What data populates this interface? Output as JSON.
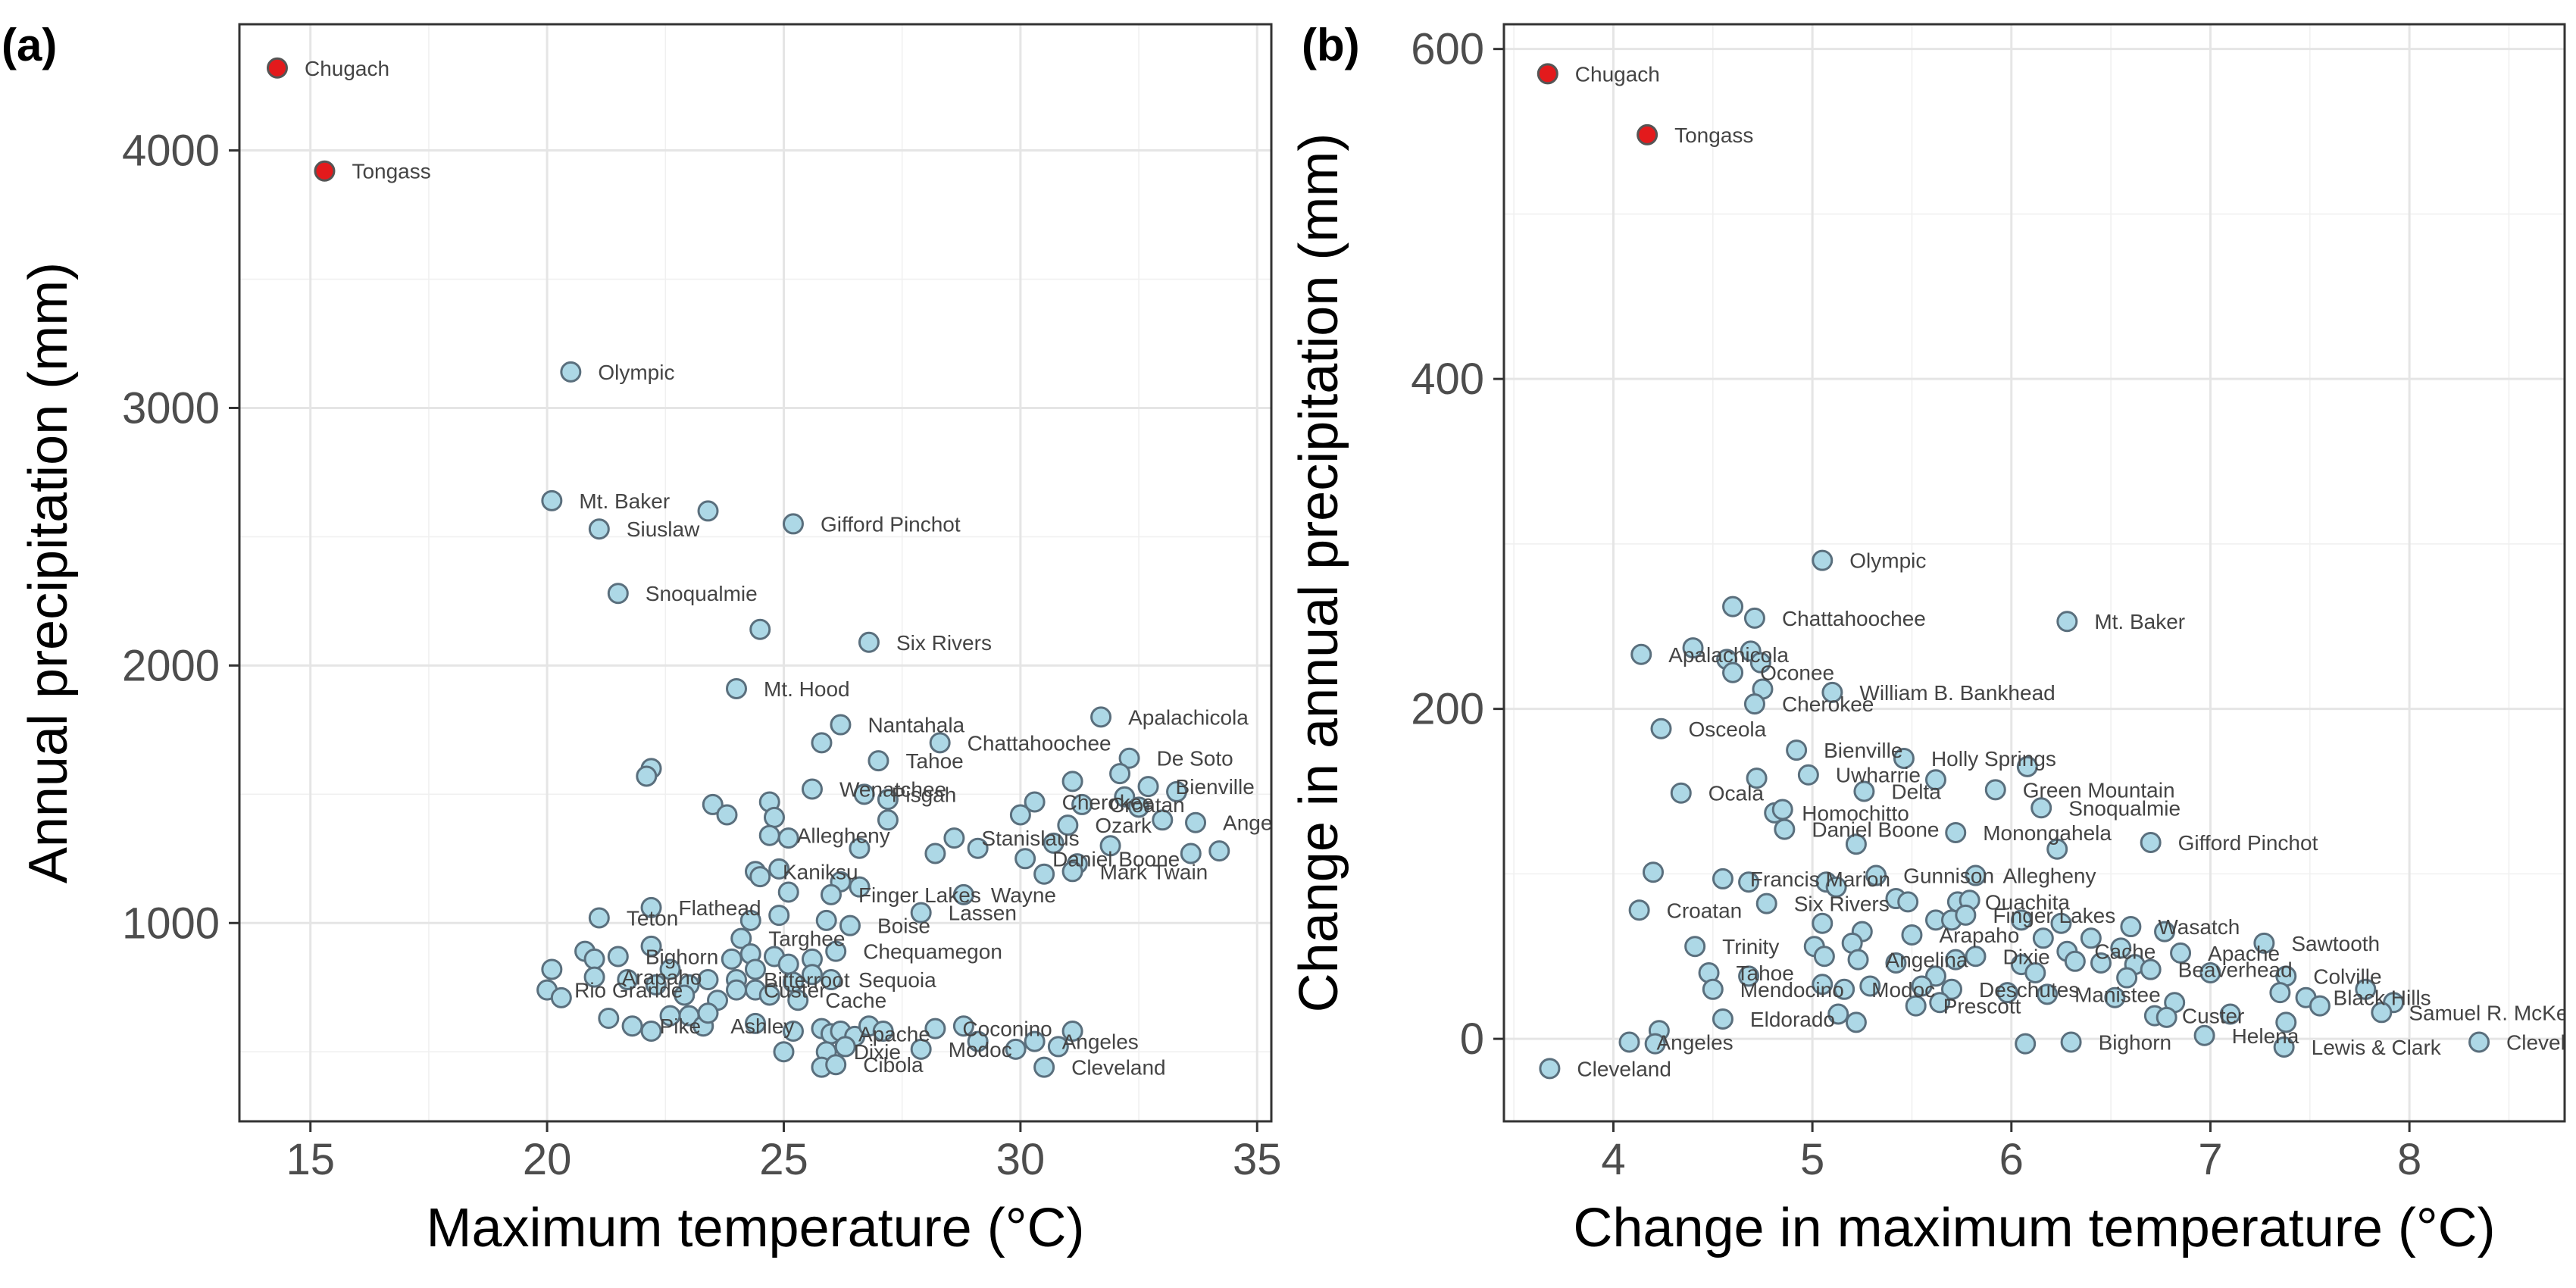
{
  "chart_data": [
    {
      "type": "scatter",
      "panel_label": "(a)",
      "xlabel": "Maximum temperature (°C)",
      "ylabel": "Annual precipitation (mm)",
      "xlim": [
        13.5,
        35.3
      ],
      "ylim": [
        230,
        4490
      ],
      "xticks": [
        15,
        20,
        25,
        30,
        35
      ],
      "yticks": [
        1000,
        2000,
        3000,
        4000
      ],
      "grid": true,
      "legend": "none",
      "colors": {
        "default_fill": "#add8e6",
        "default_stroke": "#5a6f7d",
        "highlight_fill": "#e31a1c",
        "highlight_stroke": "#555555"
      },
      "points": [
        {
          "x": 14.3,
          "y": 4320,
          "label": "Chugach",
          "highlight": true
        },
        {
          "x": 15.3,
          "y": 3920,
          "label": "Tongass",
          "highlight": true
        },
        {
          "x": 20.5,
          "y": 3140,
          "label": "Olympic"
        },
        {
          "x": 20.1,
          "y": 2640,
          "label": "Mt. Baker"
        },
        {
          "x": 21.1,
          "y": 2530,
          "label": "Siuslaw"
        },
        {
          "x": 23.4,
          "y": 2600
        },
        {
          "x": 25.2,
          "y": 2550,
          "label": "Gifford Pinchot"
        },
        {
          "x": 21.5,
          "y": 2280,
          "label": "Snoqualmie"
        },
        {
          "x": 24.5,
          "y": 2140
        },
        {
          "x": 26.8,
          "y": 2090,
          "label": "Six Rivers"
        },
        {
          "x": 24.0,
          "y": 1910,
          "label": "Mt. Hood"
        },
        {
          "x": 26.2,
          "y": 1770,
          "label": "Nantahala"
        },
        {
          "x": 25.8,
          "y": 1700
        },
        {
          "x": 28.3,
          "y": 1700,
          "label": "Chattahoochee"
        },
        {
          "x": 31.7,
          "y": 1800,
          "label": "Apalachicola"
        },
        {
          "x": 27.0,
          "y": 1630,
          "label": "Tahoe"
        },
        {
          "x": 32.3,
          "y": 1640,
          "label": "De Soto"
        },
        {
          "x": 22.2,
          "y": 1600
        },
        {
          "x": 22.1,
          "y": 1570
        },
        {
          "x": 32.1,
          "y": 1580
        },
        {
          "x": 25.6,
          "y": 1520,
          "label": "Wenatchee"
        },
        {
          "x": 31.1,
          "y": 1550
        },
        {
          "x": 32.7,
          "y": 1530,
          "label": "Bienville"
        },
        {
          "x": 26.7,
          "y": 1500,
          "label": "Pisgah"
        },
        {
          "x": 27.2,
          "y": 1480
        },
        {
          "x": 32.2,
          "y": 1490
        },
        {
          "x": 33.3,
          "y": 1510
        },
        {
          "x": 23.5,
          "y": 1460
        },
        {
          "x": 24.7,
          "y": 1470
        },
        {
          "x": 30.3,
          "y": 1470,
          "label": "Cherokee"
        },
        {
          "x": 31.3,
          "y": 1460,
          "label": "Croatan"
        },
        {
          "x": 32.5,
          "y": 1450
        },
        {
          "x": 23.8,
          "y": 1420
        },
        {
          "x": 24.8,
          "y": 1410
        },
        {
          "x": 30.0,
          "y": 1420
        },
        {
          "x": 33.0,
          "y": 1400
        },
        {
          "x": 27.2,
          "y": 1400
        },
        {
          "x": 31.0,
          "y": 1380,
          "label": "Ozark"
        },
        {
          "x": 33.7,
          "y": 1390,
          "label": "Angeles"
        },
        {
          "x": 24.7,
          "y": 1340,
          "label": "Allegheny"
        },
        {
          "x": 25.1,
          "y": 1330
        },
        {
          "x": 28.6,
          "y": 1330,
          "label": "Stanislaus"
        },
        {
          "x": 29.1,
          "y": 1290
        },
        {
          "x": 30.7,
          "y": 1310
        },
        {
          "x": 31.9,
          "y": 1300
        },
        {
          "x": 26.6,
          "y": 1290
        },
        {
          "x": 28.2,
          "y": 1270
        },
        {
          "x": 30.1,
          "y": 1250,
          "label": "Daniel Boone"
        },
        {
          "x": 31.2,
          "y": 1230
        },
        {
          "x": 33.6,
          "y": 1270
        },
        {
          "x": 34.2,
          "y": 1280
        },
        {
          "x": 31.1,
          "y": 1200,
          "label": "Mark Twain"
        },
        {
          "x": 24.4,
          "y": 1200,
          "label": "Kaniksu"
        },
        {
          "x": 24.9,
          "y": 1210
        },
        {
          "x": 24.5,
          "y": 1180
        },
        {
          "x": 30.5,
          "y": 1190
        },
        {
          "x": 26.2,
          "y": 1160
        },
        {
          "x": 26.6,
          "y": 1140
        },
        {
          "x": 25.1,
          "y": 1120
        },
        {
          "x": 28.8,
          "y": 1110,
          "label": "Wayne"
        },
        {
          "x": 26.0,
          "y": 1110,
          "label": "Finger Lakes"
        },
        {
          "x": 22.2,
          "y": 1060,
          "label": "Flathead"
        },
        {
          "x": 21.1,
          "y": 1020,
          "label": "Teton"
        },
        {
          "x": 24.9,
          "y": 1030
        },
        {
          "x": 24.3,
          "y": 1010
        },
        {
          "x": 27.9,
          "y": 1040,
          "label": "Lassen"
        },
        {
          "x": 25.9,
          "y": 1010
        },
        {
          "x": 26.4,
          "y": 990,
          "label": "Boise"
        },
        {
          "x": 24.1,
          "y": 940,
          "label": "Targhee"
        },
        {
          "x": 20.8,
          "y": 890
        },
        {
          "x": 21.5,
          "y": 870,
          "label": "Bighorn"
        },
        {
          "x": 21.0,
          "y": 860
        },
        {
          "x": 22.2,
          "y": 910
        },
        {
          "x": 24.3,
          "y": 880
        },
        {
          "x": 24.8,
          "y": 870
        },
        {
          "x": 25.1,
          "y": 840
        },
        {
          "x": 25.6,
          "y": 860
        },
        {
          "x": 26.1,
          "y": 890,
          "label": "Chequamegon"
        },
        {
          "x": 23.9,
          "y": 860
        },
        {
          "x": 20.1,
          "y": 820
        },
        {
          "x": 21.0,
          "y": 790,
          "label": "Arapaho"
        },
        {
          "x": 22.6,
          "y": 820
        },
        {
          "x": 24.4,
          "y": 820
        },
        {
          "x": 25.6,
          "y": 800
        },
        {
          "x": 20.0,
          "y": 740,
          "label": "Rio Grande"
        },
        {
          "x": 20.3,
          "y": 710
        },
        {
          "x": 21.7,
          "y": 780
        },
        {
          "x": 22.3,
          "y": 760
        },
        {
          "x": 23.0,
          "y": 760
        },
        {
          "x": 23.4,
          "y": 780
        },
        {
          "x": 24.0,
          "y": 780,
          "label": "Bitterroot"
        },
        {
          "x": 25.2,
          "y": 770
        },
        {
          "x": 26.0,
          "y": 780,
          "label": "Sequoia"
        },
        {
          "x": 22.9,
          "y": 720
        },
        {
          "x": 23.6,
          "y": 700
        },
        {
          "x": 24.0,
          "y": 740,
          "label": "Custer"
        },
        {
          "x": 24.4,
          "y": 740
        },
        {
          "x": 24.7,
          "y": 720
        },
        {
          "x": 25.3,
          "y": 700,
          "label": "Cache"
        },
        {
          "x": 21.3,
          "y": 630
        },
        {
          "x": 21.8,
          "y": 600,
          "label": "Pike"
        },
        {
          "x": 22.2,
          "y": 580
        },
        {
          "x": 22.6,
          "y": 640
        },
        {
          "x": 23.0,
          "y": 640
        },
        {
          "x": 23.3,
          "y": 600,
          "label": "Ashley"
        },
        {
          "x": 23.4,
          "y": 650
        },
        {
          "x": 24.4,
          "y": 610
        },
        {
          "x": 25.2,
          "y": 580
        },
        {
          "x": 25.8,
          "y": 590
        },
        {
          "x": 26.0,
          "y": 570,
          "label": "Apache"
        },
        {
          "x": 26.2,
          "y": 580
        },
        {
          "x": 26.5,
          "y": 560
        },
        {
          "x": 26.8,
          "y": 600
        },
        {
          "x": 27.1,
          "y": 580
        },
        {
          "x": 28.2,
          "y": 590,
          "label": "Coconino"
        },
        {
          "x": 28.8,
          "y": 600
        },
        {
          "x": 31.1,
          "y": 580
        },
        {
          "x": 25.0,
          "y": 500
        },
        {
          "x": 25.9,
          "y": 500,
          "label": "Dixie"
        },
        {
          "x": 26.3,
          "y": 520
        },
        {
          "x": 27.9,
          "y": 510,
          "label": "Modoc"
        },
        {
          "x": 29.1,
          "y": 540
        },
        {
          "x": 29.9,
          "y": 510
        },
        {
          "x": 30.3,
          "y": 540,
          "label": "Angeles"
        },
        {
          "x": 30.8,
          "y": 520
        },
        {
          "x": 25.8,
          "y": 440
        },
        {
          "x": 26.1,
          "y": 450,
          "label": "Cibola"
        },
        {
          "x": 30.5,
          "y": 440,
          "label": "Cleveland"
        }
      ]
    },
    {
      "type": "scatter",
      "panel_label": "(b)",
      "xlabel": "Change in maximum temperature (°C)",
      "ylabel": "Change in annual precipitation (mm)",
      "xlim": [
        3.45,
        8.78
      ],
      "ylim": [
        -50,
        615
      ],
      "xticks": [
        4,
        5,
        6,
        7,
        8
      ],
      "yticks": [
        0,
        200,
        400,
        600
      ],
      "grid": true,
      "legend": "none",
      "colors": {
        "default_fill": "#add8e6",
        "default_stroke": "#5a6f7d",
        "highlight_fill": "#e31a1c",
        "highlight_stroke": "#555555"
      },
      "points": [
        {
          "x": 3.67,
          "y": 585,
          "label": "Chugach",
          "highlight": true
        },
        {
          "x": 4.17,
          "y": 548,
          "label": "Tongass",
          "highlight": true
        },
        {
          "x": 5.05,
          "y": 290,
          "label": "Olympic"
        },
        {
          "x": 4.6,
          "y": 262
        },
        {
          "x": 4.71,
          "y": 255,
          "label": "Chattahoochee"
        },
        {
          "x": 6.28,
          "y": 253,
          "label": "Mt. Baker"
        },
        {
          "x": 4.4,
          "y": 237
        },
        {
          "x": 4.69,
          "y": 235
        },
        {
          "x": 4.14,
          "y": 233,
          "label": "Apalachicola"
        },
        {
          "x": 4.57,
          "y": 230
        },
        {
          "x": 4.74,
          "y": 228
        },
        {
          "x": 4.6,
          "y": 222,
          "label": "Oconee"
        },
        {
          "x": 4.75,
          "y": 212
        },
        {
          "x": 5.1,
          "y": 210,
          "label": "William B. Bankhead"
        },
        {
          "x": 4.71,
          "y": 203,
          "label": "Cherokee"
        },
        {
          "x": 4.24,
          "y": 188,
          "label": "Osceola"
        },
        {
          "x": 4.92,
          "y": 175,
          "label": "Bienville"
        },
        {
          "x": 5.46,
          "y": 170,
          "label": "Holly Springs"
        },
        {
          "x": 6.08,
          "y": 165
        },
        {
          "x": 4.72,
          "y": 158
        },
        {
          "x": 4.98,
          "y": 160,
          "label": "Uwharrie"
        },
        {
          "x": 5.62,
          "y": 157
        },
        {
          "x": 5.26,
          "y": 150,
          "label": "Delta"
        },
        {
          "x": 5.92,
          "y": 151,
          "label": "Green Mountain"
        },
        {
          "x": 4.34,
          "y": 149,
          "label": "Ocala"
        },
        {
          "x": 4.81,
          "y": 137,
          "label": "Homochitto"
        },
        {
          "x": 4.85,
          "y": 139
        },
        {
          "x": 6.15,
          "y": 140,
          "label": "Snoqualmie"
        },
        {
          "x": 4.86,
          "y": 127,
          "label": "Daniel Boone"
        },
        {
          "x": 5.72,
          "y": 125,
          "label": "Monongahela"
        },
        {
          "x": 6.23,
          "y": 115
        },
        {
          "x": 6.7,
          "y": 119,
          "label": "Gifford Pinchot"
        },
        {
          "x": 5.22,
          "y": 118
        },
        {
          "x": 4.2,
          "y": 101
        },
        {
          "x": 4.55,
          "y": 97,
          "label": "Francis Marion"
        },
        {
          "x": 4.68,
          "y": 95
        },
        {
          "x": 5.07,
          "y": 95
        },
        {
          "x": 5.12,
          "y": 92
        },
        {
          "x": 5.32,
          "y": 99,
          "label": "Gunnison"
        },
        {
          "x": 5.82,
          "y": 99,
          "label": "Allegheny"
        },
        {
          "x": 4.13,
          "y": 78,
          "label": "Croatan"
        },
        {
          "x": 4.77,
          "y": 82,
          "label": "Six Rivers"
        },
        {
          "x": 5.42,
          "y": 85
        },
        {
          "x": 5.48,
          "y": 83
        },
        {
          "x": 5.73,
          "y": 83,
          "label": "Ouachita"
        },
        {
          "x": 5.79,
          "y": 84
        },
        {
          "x": 5.05,
          "y": 70
        },
        {
          "x": 5.62,
          "y": 72
        },
        {
          "x": 5.7,
          "y": 72
        },
        {
          "x": 5.77,
          "y": 75,
          "label": "Finger Lakes"
        },
        {
          "x": 6.05,
          "y": 72
        },
        {
          "x": 6.25,
          "y": 70
        },
        {
          "x": 6.6,
          "y": 68,
          "label": "Wasatch"
        },
        {
          "x": 6.77,
          "y": 65
        },
        {
          "x": 5.25,
          "y": 65
        },
        {
          "x": 5.5,
          "y": 63,
          "label": "Arapaho"
        },
        {
          "x": 6.16,
          "y": 61
        },
        {
          "x": 6.4,
          "y": 61
        },
        {
          "x": 4.41,
          "y": 56,
          "label": "Trinity"
        },
        {
          "x": 5.01,
          "y": 56
        },
        {
          "x": 5.2,
          "y": 58
        },
        {
          "x": 6.28,
          "y": 53,
          "label": "Cache"
        },
        {
          "x": 6.55,
          "y": 55
        },
        {
          "x": 6.85,
          "y": 52,
          "label": "Apache"
        },
        {
          "x": 7.27,
          "y": 58,
          "label": "Sawtooth"
        },
        {
          "x": 5.06,
          "y": 50
        },
        {
          "x": 5.23,
          "y": 48,
          "label": "Angelina"
        },
        {
          "x": 5.42,
          "y": 46
        },
        {
          "x": 5.72,
          "y": 48
        },
        {
          "x": 5.82,
          "y": 50,
          "label": "Dixie"
        },
        {
          "x": 6.05,
          "y": 45
        },
        {
          "x": 6.32,
          "y": 47
        },
        {
          "x": 6.45,
          "y": 46
        },
        {
          "x": 6.62,
          "y": 45
        },
        {
          "x": 6.7,
          "y": 42,
          "label": "Beaverhead"
        },
        {
          "x": 7.0,
          "y": 40
        },
        {
          "x": 4.48,
          "y": 40,
          "label": "Tahoe"
        },
        {
          "x": 4.68,
          "y": 38
        },
        {
          "x": 5.62,
          "y": 38
        },
        {
          "x": 6.12,
          "y": 40
        },
        {
          "x": 6.58,
          "y": 37
        },
        {
          "x": 7.38,
          "y": 38,
          "label": "Colville"
        },
        {
          "x": 4.5,
          "y": 30,
          "label": "Mendocino"
        },
        {
          "x": 5.05,
          "y": 33
        },
        {
          "x": 5.16,
          "y": 30,
          "label": "Modoc"
        },
        {
          "x": 5.29,
          "y": 32
        },
        {
          "x": 5.55,
          "y": 32
        },
        {
          "x": 5.7,
          "y": 30,
          "label": "Deschutes"
        },
        {
          "x": 5.98,
          "y": 28
        },
        {
          "x": 6.18,
          "y": 27,
          "label": "Manistee"
        },
        {
          "x": 6.52,
          "y": 25
        },
        {
          "x": 6.82,
          "y": 22
        },
        {
          "x": 7.78,
          "y": 30
        },
        {
          "x": 7.35,
          "y": 28
        },
        {
          "x": 7.48,
          "y": 25,
          "label": "Black Hills"
        },
        {
          "x": 7.55,
          "y": 20
        },
        {
          "x": 7.92,
          "y": 22
        },
        {
          "x": 5.52,
          "y": 20,
          "label": "Prescott"
        },
        {
          "x": 5.64,
          "y": 22
        },
        {
          "x": 4.55,
          "y": 12,
          "label": "Eldorado"
        },
        {
          "x": 5.13,
          "y": 15
        },
        {
          "x": 5.22,
          "y": 10
        },
        {
          "x": 6.72,
          "y": 14,
          "label": "Custer"
        },
        {
          "x": 6.78,
          "y": 13
        },
        {
          "x": 7.1,
          "y": 15
        },
        {
          "x": 7.38,
          "y": 10
        },
        {
          "x": 7.86,
          "y": 16,
          "label": "Samuel R. McKelvie"
        },
        {
          "x": 4.23,
          "y": 5
        },
        {
          "x": 4.08,
          "y": -2,
          "label": "Angeles"
        },
        {
          "x": 4.21,
          "y": -3
        },
        {
          "x": 6.07,
          "y": -3
        },
        {
          "x": 6.3,
          "y": -2,
          "label": "Bighorn"
        },
        {
          "x": 6.97,
          "y": 2,
          "label": "Helena"
        },
        {
          "x": 7.37,
          "y": -5,
          "label": "Lewis & Clark"
        },
        {
          "x": 8.35,
          "y": -2,
          "label": "Cleveland"
        },
        {
          "x": 3.68,
          "y": -18,
          "label": "Cleveland"
        }
      ]
    }
  ]
}
